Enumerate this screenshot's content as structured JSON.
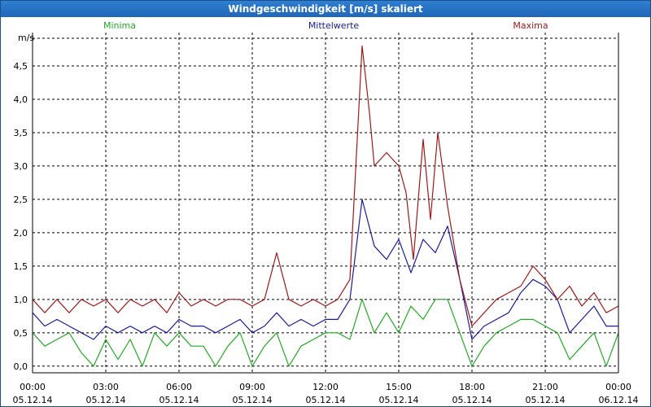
{
  "window": {
    "title": "Windgeschwindigkeit [m/s] skaliert"
  },
  "chart_data": {
    "type": "line",
    "title": "Windgeschwindigkeit [m/s] skaliert",
    "ylabel": "m/s",
    "ylim": [
      -0.1,
      5.0
    ],
    "grid": true,
    "y_ticks": [
      0.0,
      0.5,
      1.0,
      1.5,
      2.0,
      2.5,
      3.0,
      3.5,
      4.0,
      4.5
    ],
    "y_tick_labels": [
      "0,0",
      "0,5",
      "1,0",
      "1,5",
      "2,0",
      "2,5",
      "3,0",
      "3,5",
      "4,0",
      "4,5"
    ],
    "x_tick_labels": [
      {
        "time": "00:00",
        "date": "05.12.14"
      },
      {
        "time": "03:00",
        "date": "05.12.14"
      },
      {
        "time": "06:00",
        "date": "05.12.14"
      },
      {
        "time": "09:00",
        "date": "05.12.14"
      },
      {
        "time": "12:00",
        "date": "05.12.14"
      },
      {
        "time": "15:00",
        "date": "05.12.14"
      },
      {
        "time": "18:00",
        "date": "05.12.14"
      },
      {
        "time": "21:00",
        "date": "05.12.14"
      },
      {
        "time": "00:00",
        "date": "06.12.14"
      }
    ],
    "x_unit": "hours since 05.12.14 00:00",
    "xlim": [
      0,
      24
    ],
    "series": [
      {
        "name": "Minima",
        "color": "#22aa22",
        "x": [
          0.0,
          0.5,
          1.0,
          1.5,
          2.0,
          2.5,
          3.0,
          3.5,
          4.0,
          4.5,
          5.0,
          5.5,
          6.0,
          6.5,
          7.0,
          7.5,
          8.0,
          8.5,
          9.0,
          9.5,
          10.0,
          10.5,
          11.0,
          11.5,
          12.0,
          12.5,
          13.0,
          13.5,
          14.0,
          14.5,
          15.0,
          15.5,
          16.0,
          16.5,
          17.0,
          17.5,
          18.0,
          18.5,
          19.0,
          19.5,
          20.0,
          20.5,
          21.0,
          21.5,
          22.0,
          22.5,
          23.0,
          23.5,
          24.0
        ],
        "values": [
          0.5,
          0.3,
          0.4,
          0.5,
          0.2,
          0.0,
          0.4,
          0.1,
          0.4,
          0.0,
          0.5,
          0.3,
          0.5,
          0.3,
          0.3,
          0.0,
          0.3,
          0.5,
          0.0,
          0.3,
          0.5,
          0.0,
          0.3,
          0.4,
          0.5,
          0.5,
          0.4,
          1.0,
          0.5,
          0.8,
          0.5,
          0.9,
          0.7,
          1.0,
          1.0,
          0.5,
          0.0,
          0.3,
          0.5,
          0.6,
          0.7,
          0.7,
          0.6,
          0.5,
          0.1,
          0.3,
          0.5,
          0.0,
          0.5
        ]
      },
      {
        "name": "Mittelwerte",
        "color": "#1a1aa0",
        "x": [
          0.0,
          0.5,
          1.0,
          1.5,
          2.0,
          2.5,
          3.0,
          3.5,
          4.0,
          4.5,
          5.0,
          5.5,
          6.0,
          6.5,
          7.0,
          7.5,
          8.0,
          8.5,
          9.0,
          9.5,
          10.0,
          10.5,
          11.0,
          11.5,
          12.0,
          12.5,
          13.0,
          13.5,
          14.0,
          14.5,
          15.0,
          15.5,
          16.0,
          16.5,
          17.0,
          17.5,
          18.0,
          18.5,
          19.0,
          19.5,
          20.0,
          20.5,
          21.0,
          21.5,
          22.0,
          22.5,
          23.0,
          23.5,
          24.0
        ],
        "values": [
          0.8,
          0.6,
          0.7,
          0.6,
          0.5,
          0.4,
          0.6,
          0.5,
          0.6,
          0.5,
          0.6,
          0.5,
          0.7,
          0.6,
          0.6,
          0.5,
          0.6,
          0.7,
          0.5,
          0.6,
          0.8,
          0.6,
          0.7,
          0.6,
          0.7,
          0.7,
          1.0,
          2.5,
          1.8,
          1.6,
          1.9,
          1.4,
          1.9,
          1.7,
          2.1,
          1.3,
          0.4,
          0.6,
          0.7,
          0.8,
          1.1,
          1.3,
          1.2,
          1.0,
          0.5,
          0.7,
          0.9,
          0.6,
          0.6
        ]
      },
      {
        "name": "Maxima",
        "color": "#a01818",
        "x": [
          0.0,
          0.5,
          1.0,
          1.5,
          2.0,
          2.5,
          3.0,
          3.5,
          4.0,
          4.5,
          5.0,
          5.5,
          6.0,
          6.5,
          7.0,
          7.5,
          8.0,
          8.5,
          9.0,
          9.5,
          10.0,
          10.5,
          11.0,
          11.5,
          12.0,
          12.5,
          13.0,
          13.5,
          13.8,
          14.0,
          14.5,
          15.0,
          15.3,
          15.6,
          16.0,
          16.3,
          16.6,
          17.0,
          17.5,
          18.0,
          18.5,
          19.0,
          19.5,
          20.0,
          20.5,
          21.0,
          21.5,
          22.0,
          22.5,
          23.0,
          23.5,
          24.0
        ],
        "values": [
          1.0,
          0.8,
          1.0,
          0.8,
          1.0,
          0.9,
          1.0,
          0.8,
          1.0,
          0.9,
          1.0,
          0.8,
          1.1,
          0.9,
          1.0,
          0.9,
          1.0,
          1.0,
          0.9,
          1.0,
          1.7,
          1.0,
          0.9,
          1.0,
          0.9,
          1.0,
          1.3,
          4.8,
          3.8,
          3.0,
          3.2,
          3.0,
          2.6,
          1.6,
          3.4,
          2.2,
          3.5,
          2.4,
          1.3,
          0.6,
          0.8,
          1.0,
          1.1,
          1.2,
          1.5,
          1.3,
          1.0,
          1.2,
          0.9,
          1.1,
          0.8,
          0.9
        ]
      }
    ]
  }
}
